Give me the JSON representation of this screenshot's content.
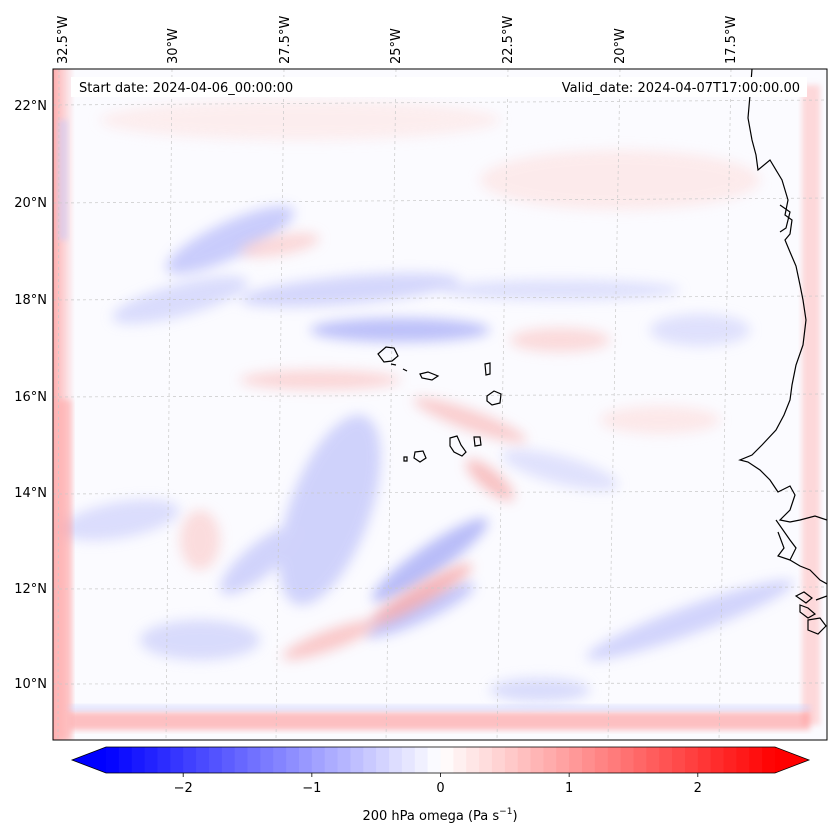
{
  "map": {
    "start_label": "Start date: 2024-04-06_00:00:00",
    "valid_label": "Valid_date: 2024-04-07T17:00:00.00",
    "variable": "200 hPa omega",
    "units_prefix": "200 hPa omega (Pa s",
    "units_exp": "−1",
    "units_suffix": ")",
    "lon_ticks": [
      "32.5°W",
      "30°W",
      "27.5°W",
      "25°W",
      "22.5°W",
      "20°W",
      "17.5°W"
    ],
    "lat_ticks": [
      "22°N",
      "20°N",
      "18°N",
      "16°N",
      "14°N",
      "12°N",
      "10°N"
    ],
    "extent": {
      "lon_min": -32.6,
      "lon_max": -15.0,
      "lat_min": 9.1,
      "lat_max": 22.8
    }
  },
  "colorbar": {
    "ticks": [
      "−2",
      "−1",
      "0",
      "1",
      "2"
    ],
    "tick_values": [
      -2,
      -1,
      0,
      1,
      2
    ],
    "vmin": -2.6,
    "vmax": 2.6,
    "color_min": "#0000ff",
    "color_mid": "#ffffff",
    "color_max": "#ff0000",
    "extend": "both"
  }
}
